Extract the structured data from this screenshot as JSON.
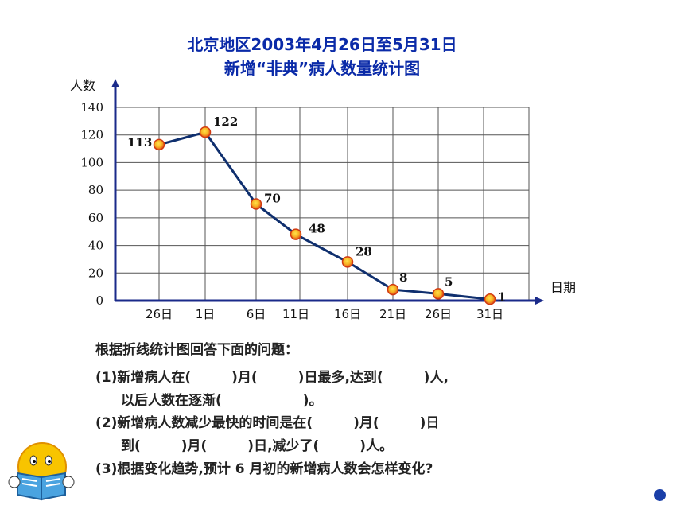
{
  "chart_data": {
    "type": "line",
    "title": "北京地区2003年4月26日至5月31日",
    "subtitle": "新增“非典”病人数量统计图",
    "ylabel": "人数",
    "xlabel": "日期",
    "ylim": [
      0,
      140
    ],
    "yticks": [
      "0",
      "20",
      "40",
      "60",
      "80",
      "100",
      "120",
      "140"
    ],
    "categories": [
      "26日",
      "1日",
      "6日",
      "11日",
      "16日",
      "21日",
      "26日",
      "31日"
    ],
    "values": [
      113,
      122,
      70,
      48,
      28,
      8,
      5,
      1
    ],
    "data_labels": [
      "113",
      "122",
      "70",
      "48",
      "28",
      "8",
      "5",
      "1"
    ],
    "grid": true,
    "line_color": "#0f2f6e",
    "marker_color": "#e84a10"
  },
  "questions": {
    "heading": "根据折线统计图回答下面的问题：",
    "q1_line1": "(1)新增病人在(　　　)月(　　　)日最多,达到(　　　)人,",
    "q1_line2": "以后人数在逐渐(　　　　　　)。",
    "q2_line1": "(2)新增病人数减少最快的时间是在(　　　)月(　　　)日",
    "q2_line2": "到(　　　)月(　　　)日,减少了(　　　)人。",
    "q3": "(3)根据变化趋势,预计 6 月初的新增病人数会怎样变化?"
  },
  "decor": {
    "reader_icon": "smiley-reading-book-icon",
    "nav_dot_color": "#1a3fa8"
  }
}
